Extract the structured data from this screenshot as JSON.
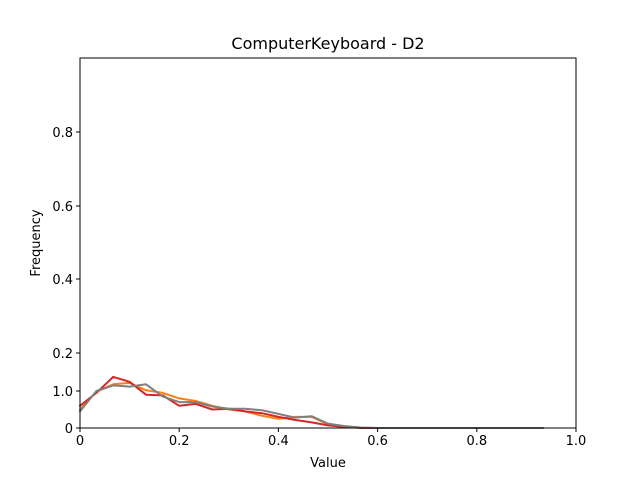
{
  "chart_data": {
    "type": "line",
    "title": "ComputerKeyboard - D2",
    "xlabel": "Value",
    "ylabel": "Frequency",
    "xlim": [
      0,
      1.0
    ],
    "x_ticks": [
      {
        "value": 0.0,
        "label": "0"
      },
      {
        "value": 0.2,
        "label": "0.2"
      },
      {
        "value": 0.4,
        "label": "0.4"
      },
      {
        "value": 0.6,
        "label": "0.6"
      },
      {
        "value": 0.8,
        "label": "0.8"
      },
      {
        "value": 1.0,
        "label": "1.0"
      }
    ],
    "y_ticks": [
      {
        "label": "0"
      },
      {
        "label": "1.0"
      },
      {
        "label": "0.2"
      },
      {
        "label": "0.4"
      },
      {
        "label": "0.6"
      },
      {
        "label": "0.8"
      }
    ],
    "grid": false,
    "series": [
      {
        "color": "#ff7f0e",
        "x": [
          0,
          0.033,
          0.067,
          0.1,
          0.133,
          0.167,
          0.2,
          0.233,
          0.267,
          0.3,
          0.333,
          0.367,
          0.4,
          0.433,
          0.467,
          0.5,
          0.533,
          0.567,
          0.6,
          0.633,
          0.667,
          0.7,
          0.733,
          0.767,
          0.8,
          0.833,
          0.867,
          0.9,
          0.933
        ],
        "y": [
          0.5,
          0.98,
          1.18,
          1.22,
          1.02,
          0.95,
          0.8,
          0.73,
          0.6,
          0.5,
          0.45,
          0.33,
          0.25,
          0.3,
          0.3,
          0.1,
          0.05,
          0.01,
          0.0,
          0.0,
          0.0,
          0.0,
          0.0,
          0.0,
          0.0,
          0.0,
          0.0,
          0.0,
          0.0
        ]
      },
      {
        "color": "#d62728",
        "x": [
          0,
          0.033,
          0.067,
          0.1,
          0.133,
          0.167,
          0.2,
          0.233,
          0.267,
          0.3,
          0.333,
          0.367,
          0.4,
          0.433,
          0.467,
          0.5,
          0.533,
          0.567,
          0.6,
          0.633,
          0.667,
          0.7,
          0.733,
          0.767,
          0.8,
          0.833,
          0.867,
          0.9,
          0.933
        ],
        "y": [
          0.6,
          0.95,
          1.38,
          1.25,
          0.9,
          0.88,
          0.6,
          0.65,
          0.5,
          0.52,
          0.45,
          0.4,
          0.3,
          0.22,
          0.15,
          0.07,
          0.03,
          0.0,
          0.0,
          0.0,
          0.0,
          0.0,
          0.0,
          0.0,
          0.0,
          0.0,
          0.0,
          0.0,
          0.0
        ]
      },
      {
        "color": "#7f7f7f",
        "x": [
          0,
          0.033,
          0.067,
          0.1,
          0.133,
          0.167,
          0.2,
          0.233,
          0.267,
          0.3,
          0.333,
          0.367,
          0.4,
          0.433,
          0.467,
          0.5,
          0.533,
          0.567,
          0.6,
          0.633,
          0.667,
          0.7,
          0.733,
          0.767,
          0.8,
          0.833,
          0.867,
          0.9,
          0.933
        ],
        "y": [
          0.45,
          1.0,
          1.15,
          1.12,
          1.18,
          0.85,
          0.7,
          0.7,
          0.58,
          0.52,
          0.52,
          0.48,
          0.38,
          0.28,
          0.32,
          0.12,
          0.05,
          0.01,
          0.0,
          0.0,
          0.0,
          0.0,
          0.0,
          0.0,
          0.0,
          0.0,
          0.0,
          0.0,
          0.0
        ]
      }
    ]
  }
}
